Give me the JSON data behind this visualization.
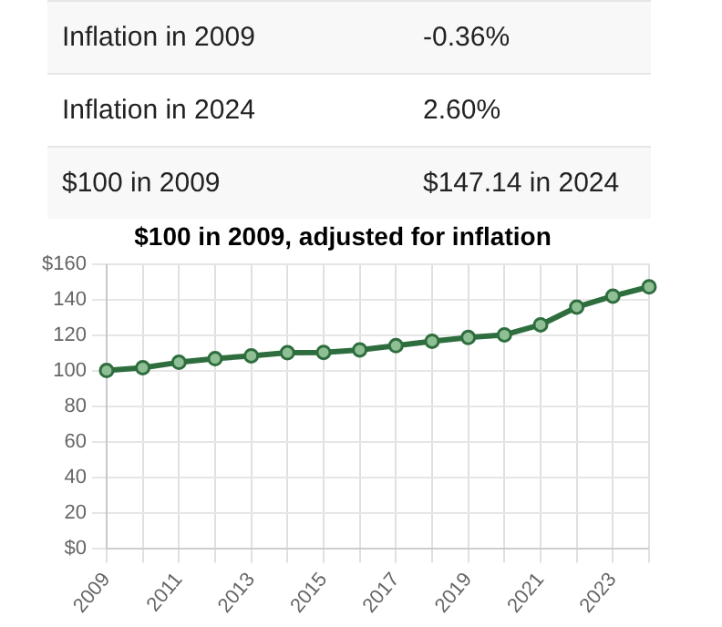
{
  "chart_data": [
    {
      "type": "other",
      "annotations": [
        "Inflation in 2009",
        "-0.36%",
        "Inflation in 2024",
        "2.60%",
        "$100 in 2009",
        "$147.14 in 2024"
      ]
    },
    {
      "type": "line",
      "title": "$100 in 2009, adjusted for inflation",
      "categories": [
        "2009",
        null,
        "2011",
        null,
        "2013",
        null,
        "2015",
        null,
        "2017",
        null,
        "2019",
        null,
        "2021",
        null,
        "2023",
        null
      ],
      "series": [
        {
          "color": "#2e6e3e",
          "values": [
            100,
            101.6,
            104.6,
            106.7,
            108.3,
            110,
            110.2,
            111.6,
            114,
            116.5,
            118.6,
            120.1,
            125.7,
            135.7,
            141.9,
            147.1
          ]
        }
      ],
      "ylim": [
        0,
        160
      ],
      "yticks": [
        {
          "value": 0,
          "label": "$0"
        },
        20,
        40,
        60,
        80,
        100,
        120,
        140,
        {
          "value": 160,
          "label": "$160"
        }
      ],
      "grid": true,
      "legend": false,
      "marker": "circle",
      "line_style": "solid"
    }
  ]
}
